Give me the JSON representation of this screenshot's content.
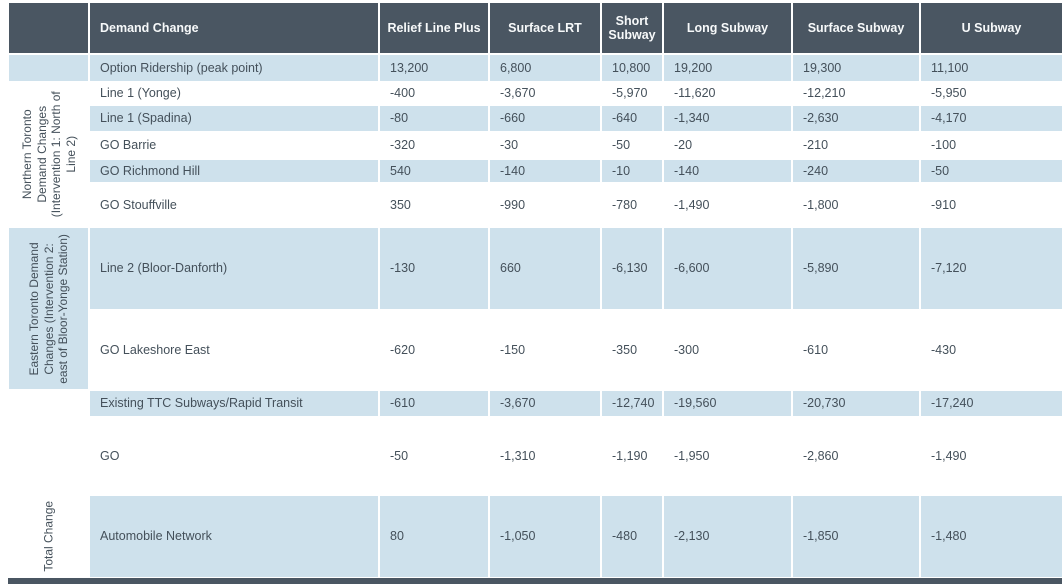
{
  "header": {
    "columns": [
      "Demand Change",
      "Relief Line Plus",
      "Surface LRT",
      "Short Subway",
      "Long Subway",
      "Surface Subway",
      "U Subway"
    ]
  },
  "sections": {
    "northern_label": "Northern Toronto\nDemand Changes\n(Intervention 1: North of\nLine 2)",
    "eastern_label": "Eastern Toronto Demand\nChanges (Intervention 2:\neast of Bloor-Yonge Station)",
    "total_label": "Total Change"
  },
  "rows": [
    {
      "name": "Option Ridership (peak point)",
      "values": [
        "13,200",
        "6,800",
        "10,800",
        "19,200",
        "19,300",
        "11,100"
      ]
    },
    {
      "name": "Line 1 (Yonge)",
      "values": [
        "-400",
        "-3,670",
        "-5,970",
        "-11,620",
        "-12,210",
        "-5,950"
      ]
    },
    {
      "name": "Line 1 (Spadina)",
      "values": [
        "-80",
        "-660",
        "-640",
        "-1,340",
        "-2,630",
        "-4,170"
      ]
    },
    {
      "name": "GO Barrie",
      "values": [
        "-320",
        "-30",
        "-50",
        "-20",
        "-210",
        "-100"
      ]
    },
    {
      "name": "GO Richmond Hill",
      "values": [
        "540",
        "-140",
        "-10",
        "-140",
        "-240",
        "-50"
      ]
    },
    {
      "name": "GO Stouffville",
      "values": [
        "350",
        "-990",
        "-780",
        "-1,490",
        "-1,800",
        "-910"
      ]
    },
    {
      "name": "Line 2 (Bloor-Danforth)",
      "values": [
        "-130",
        "660",
        "-6,130",
        "-6,600",
        "-5,890",
        "-7,120"
      ]
    },
    {
      "name": "GO Lakeshore East",
      "values": [
        "-620",
        "-150",
        "-350",
        "-300",
        "-610",
        "-430"
      ]
    },
    {
      "name": "Existing TTC Subways/Rapid Transit",
      "values": [
        "-610",
        "-3,670",
        "-12,740",
        "-19,560",
        "-20,730",
        "-17,240"
      ]
    },
    {
      "name": "GO",
      "values": [
        "-50",
        "-1,310",
        "-1,190",
        "-1,950",
        "-2,860",
        "-1,490"
      ]
    },
    {
      "name": "Automobile Network",
      "values": [
        "80",
        "-1,050",
        "-480",
        "-2,130",
        "-1,850",
        "-1,480"
      ]
    }
  ],
  "colors": {
    "header_bg": "#4a5662",
    "row_alt_bg": "#cee1ec",
    "body_text": "#44505a",
    "header_text": "#f7f9fa"
  }
}
